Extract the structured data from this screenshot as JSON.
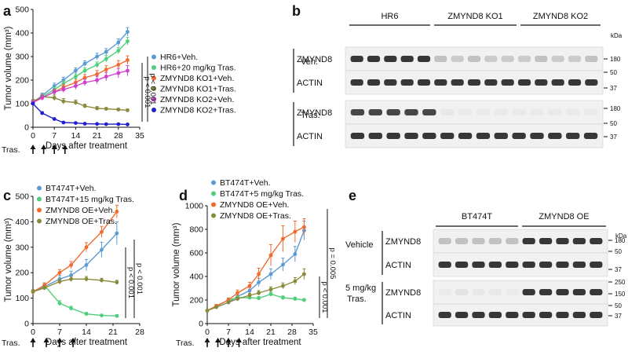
{
  "chart_data": [
    {
      "panel": "a",
      "type": "line",
      "ylabel": "Tumor volume (mm³)",
      "xlabel": "Days after treatment",
      "xlim": [
        0,
        35
      ],
      "ylim": [
        0,
        500
      ],
      "xticks": [
        0,
        7,
        14,
        21,
        28,
        35
      ],
      "yticks": [
        0,
        100,
        200,
        300,
        400,
        500
      ],
      "treatment_label": "Tras.",
      "treatment_days": [
        0,
        3.5,
        7,
        10.5
      ],
      "pvalues": [
        "p < 0.001",
        "p < 0.001"
      ],
      "series": [
        {
          "name": "HR6+Veh.",
          "color": "#5b9bd5",
          "x": [
            0,
            3,
            7,
            10,
            14,
            17,
            21,
            24,
            28,
            31
          ],
          "y": [
            105,
            135,
            175,
            200,
            240,
            270,
            300,
            320,
            360,
            405
          ],
          "err": [
            8,
            10,
            12,
            12,
            12,
            12,
            14,
            14,
            15,
            18
          ]
        },
        {
          "name": "HR6+20 mg/kg Tras.",
          "color": "#4fcf7a",
          "x": [
            0,
            3,
            7,
            10,
            14,
            17,
            21,
            24,
            28,
            31
          ],
          "y": [
            105,
            130,
            160,
            185,
            215,
            240,
            265,
            290,
            325,
            365
          ],
          "err": [
            8,
            10,
            10,
            12,
            12,
            12,
            12,
            14,
            14,
            16
          ]
        },
        {
          "name": "ZMYND8 KO1+Veh.",
          "color": "#f06b2e",
          "x": [
            0,
            3,
            7,
            10,
            14,
            17,
            21,
            24,
            28,
            31
          ],
          "y": [
            105,
            125,
            150,
            170,
            190,
            210,
            225,
            245,
            265,
            285
          ],
          "err": [
            8,
            10,
            10,
            12,
            14,
            14,
            16,
            16,
            18,
            18
          ]
        },
        {
          "name": "ZMYND8 KO1+Tras.",
          "color": "#8a8a3c",
          "x": [
            0,
            3,
            7,
            10,
            14,
            17,
            21,
            24,
            28,
            31
          ],
          "y": [
            110,
            130,
            125,
            110,
            105,
            90,
            80,
            78,
            75,
            72
          ],
          "err": [
            8,
            10,
            12,
            12,
            10,
            8,
            8,
            6,
            6,
            6
          ]
        },
        {
          "name": "ZMYND8 KO2+Veh.",
          "color": "#cf3fcf",
          "x": [
            0,
            3,
            7,
            10,
            14,
            17,
            21,
            24,
            28,
            31
          ],
          "y": [
            105,
            125,
            150,
            160,
            175,
            190,
            200,
            215,
            230,
            240
          ],
          "err": [
            8,
            10,
            12,
            12,
            14,
            14,
            16,
            18,
            20,
            22
          ]
        },
        {
          "name": "ZMYND8 KO2+Tras.",
          "color": "#1f1fcf",
          "x": [
            0,
            3,
            7,
            10,
            14,
            17,
            21,
            24,
            28,
            31
          ],
          "y": [
            100,
            60,
            35,
            20,
            18,
            15,
            14,
            13,
            13,
            12
          ],
          "err": [
            6,
            6,
            4,
            3,
            3,
            2,
            2,
            2,
            2,
            2
          ]
        }
      ]
    },
    {
      "panel": "c",
      "type": "line",
      "ylabel": "Tumor volume (mm³)",
      "xlabel": "Days after treatment",
      "xlim": [
        0,
        28
      ],
      "ylim": [
        0,
        500
      ],
      "xticks": [
        0,
        7,
        14,
        21,
        28
      ],
      "yticks": [
        0,
        100,
        200,
        300,
        400,
        500
      ],
      "treatment_label": "Tras.",
      "treatment_days": [
        0,
        3.5,
        7,
        10.5
      ],
      "pvalues": [
        "p < 0.001",
        "p < 0.001"
      ],
      "series": [
        {
          "name": "BT474T+Veh.",
          "color": "#5b9bd5",
          "x": [
            0,
            3,
            7,
            10,
            14,
            18,
            22
          ],
          "y": [
            125,
            145,
            175,
            190,
            230,
            290,
            355
          ],
          "err": [
            8,
            10,
            14,
            16,
            22,
            30,
            45
          ]
        },
        {
          "name": "BT474T+15 mg/kg Tras.",
          "color": "#4fcf7a",
          "x": [
            0,
            3,
            7,
            10,
            14,
            18,
            22
          ],
          "y": [
            125,
            150,
            80,
            60,
            38,
            32,
            30
          ],
          "err": [
            8,
            10,
            10,
            8,
            6,
            5,
            5
          ]
        },
        {
          "name": "ZMYND8 OE+Veh.",
          "color": "#f06b2e",
          "x": [
            0,
            3,
            7,
            10,
            14,
            18,
            22
          ],
          "y": [
            125,
            150,
            200,
            230,
            300,
            360,
            440
          ],
          "err": [
            8,
            10,
            12,
            14,
            18,
            22,
            25
          ]
        },
        {
          "name": "ZMYND8 OE+Tras.",
          "color": "#8a8a3c",
          "x": [
            0,
            3,
            7,
            10,
            14,
            18,
            22
          ],
          "y": [
            125,
            140,
            165,
            175,
            175,
            170,
            162
          ],
          "err": [
            8,
            8,
            10,
            10,
            10,
            8,
            8
          ]
        }
      ]
    },
    {
      "panel": "d",
      "type": "line",
      "ylabel": "Tumor volume (mm³)",
      "xlabel": "Days after treatment",
      "xlim": [
        0,
        35
      ],
      "ylim": [
        0,
        1000
      ],
      "xticks": [
        0,
        7,
        14,
        21,
        28,
        35
      ],
      "yticks": [
        0,
        200,
        400,
        600,
        800,
        1000
      ],
      "treatment_label": "Tras.",
      "treatment_days": [
        0,
        3.5,
        7,
        10.5
      ],
      "pvalues": [
        "p < 0.001",
        "p = 0.005"
      ],
      "series": [
        {
          "name": "BT474T+Veh.",
          "color": "#5b9bd5",
          "x": [
            0,
            3,
            7,
            10,
            14,
            17,
            21,
            25,
            29,
            32
          ],
          "y": [
            110,
            140,
            180,
            230,
            280,
            350,
            420,
            500,
            590,
            790
          ],
          "err": [
            10,
            12,
            15,
            20,
            25,
            35,
            45,
            55,
            65,
            80
          ]
        },
        {
          "name": "BT474T+5 mg/kg Tras.",
          "color": "#4fcf7a",
          "x": [
            0,
            3,
            7,
            10,
            14,
            17,
            21,
            25,
            29,
            32
          ],
          "y": [
            110,
            150,
            200,
            220,
            220,
            215,
            250,
            220,
            210,
            200
          ],
          "err": [
            10,
            12,
            15,
            15,
            15,
            15,
            18,
            15,
            15,
            12
          ]
        },
        {
          "name": "ZMYND8 OE+Veh.",
          "color": "#f06b2e",
          "x": [
            0,
            3,
            7,
            10,
            14,
            17,
            21,
            25,
            29,
            32
          ],
          "y": [
            110,
            150,
            200,
            260,
            320,
            420,
            580,
            720,
            780,
            820
          ],
          "err": [
            10,
            12,
            18,
            25,
            30,
            50,
            90,
            110,
            90,
            70
          ]
        },
        {
          "name": "ZMYND8 OE+Tras.",
          "color": "#8a8a3c",
          "x": [
            0,
            3,
            7,
            10,
            14,
            17,
            21,
            25,
            29,
            32
          ],
          "y": [
            110,
            140,
            180,
            210,
            240,
            260,
            290,
            320,
            360,
            420
          ],
          "err": [
            10,
            10,
            12,
            15,
            18,
            20,
            22,
            25,
            30,
            45
          ]
        }
      ]
    }
  ],
  "blots": {
    "b": {
      "groups": [
        "HR6",
        "ZMYND8 KO1",
        "ZMYND8 KO2"
      ],
      "kda_label": "kDa",
      "sections": [
        {
          "treatment": "Veh.",
          "rows": [
            {
              "protein": "ZMYND8",
              "markers": [
                "180"
              ],
              "intensity": [
                0.9,
                0.9,
                0.9,
                0.9,
                0.9,
                0.35,
                0.3,
                0.35,
                0.3,
                0.3,
                0.3,
                0.35,
                0.3,
                0.3,
                0.35
              ]
            },
            {
              "protein": "ACTIN",
              "markers": [
                "50",
                "37"
              ],
              "intensity": [
                0.9,
                0.9,
                0.9,
                0.9,
                0.9,
                0.9,
                0.9,
                0.9,
                0.9,
                0.9,
                0.9,
                0.9,
                0.9,
                0.9,
                0.9
              ]
            }
          ]
        },
        {
          "treatment": "Tras.",
          "rows": [
            {
              "protein": "ZMYND8",
              "markers": [
                "180"
              ],
              "intensity": [
                0.85,
                0.85,
                0.85,
                0.85,
                0.85,
                0.08,
                0.06,
                0.06,
                0.06,
                0.06,
                0.06,
                0.06,
                0.06,
                0.06
              ]
            },
            {
              "protein": "ACTIN",
              "markers": [
                "50",
                "37"
              ],
              "intensity": [
                0.9,
                0.9,
                0.9,
                0.9,
                0.9,
                0.9,
                0.9,
                0.9,
                0.9,
                0.9,
                0.9,
                0.9,
                0.9,
                0.9
              ]
            }
          ]
        }
      ]
    },
    "e": {
      "groups": [
        "BT474T",
        "ZMYND8 OE"
      ],
      "kda_label": "kDa",
      "sections": [
        {
          "treatment": "Vehicle",
          "rows": [
            {
              "protein": "ZMYND8",
              "markers": [
                "180",
                "50"
              ],
              "intensity": [
                0.35,
                0.35,
                0.35,
                0.35,
                0.35,
                0.9,
                0.9,
                0.9,
                0.9,
                0.9
              ]
            },
            {
              "protein": "ACTIN",
              "markers": [
                "37"
              ],
              "intensity": [
                0.9,
                0.9,
                0.9,
                0.9,
                0.9,
                0.9,
                0.9,
                0.9,
                0.9,
                0.9
              ]
            }
          ]
        },
        {
          "treatment": "5 mg/kg Tras.",
          "rows": [
            {
              "protein": "ZMYND8",
              "markers": [
                "250",
                "150"
              ],
              "intensity": [
                0.05,
                0.12,
                0.08,
                0.08,
                0.05,
                0.9,
                0.9,
                0.9,
                0.9,
                0.9
              ]
            },
            {
              "protein": "ACTIN",
              "markers": [
                "50",
                "37"
              ],
              "intensity": [
                0.9,
                0.9,
                0.9,
                0.9,
                0.9,
                0.9,
                0.9,
                0.9,
                0.9,
                0.9
              ]
            }
          ]
        }
      ]
    }
  },
  "panel_labels": [
    "a",
    "b",
    "c",
    "d",
    "e"
  ]
}
